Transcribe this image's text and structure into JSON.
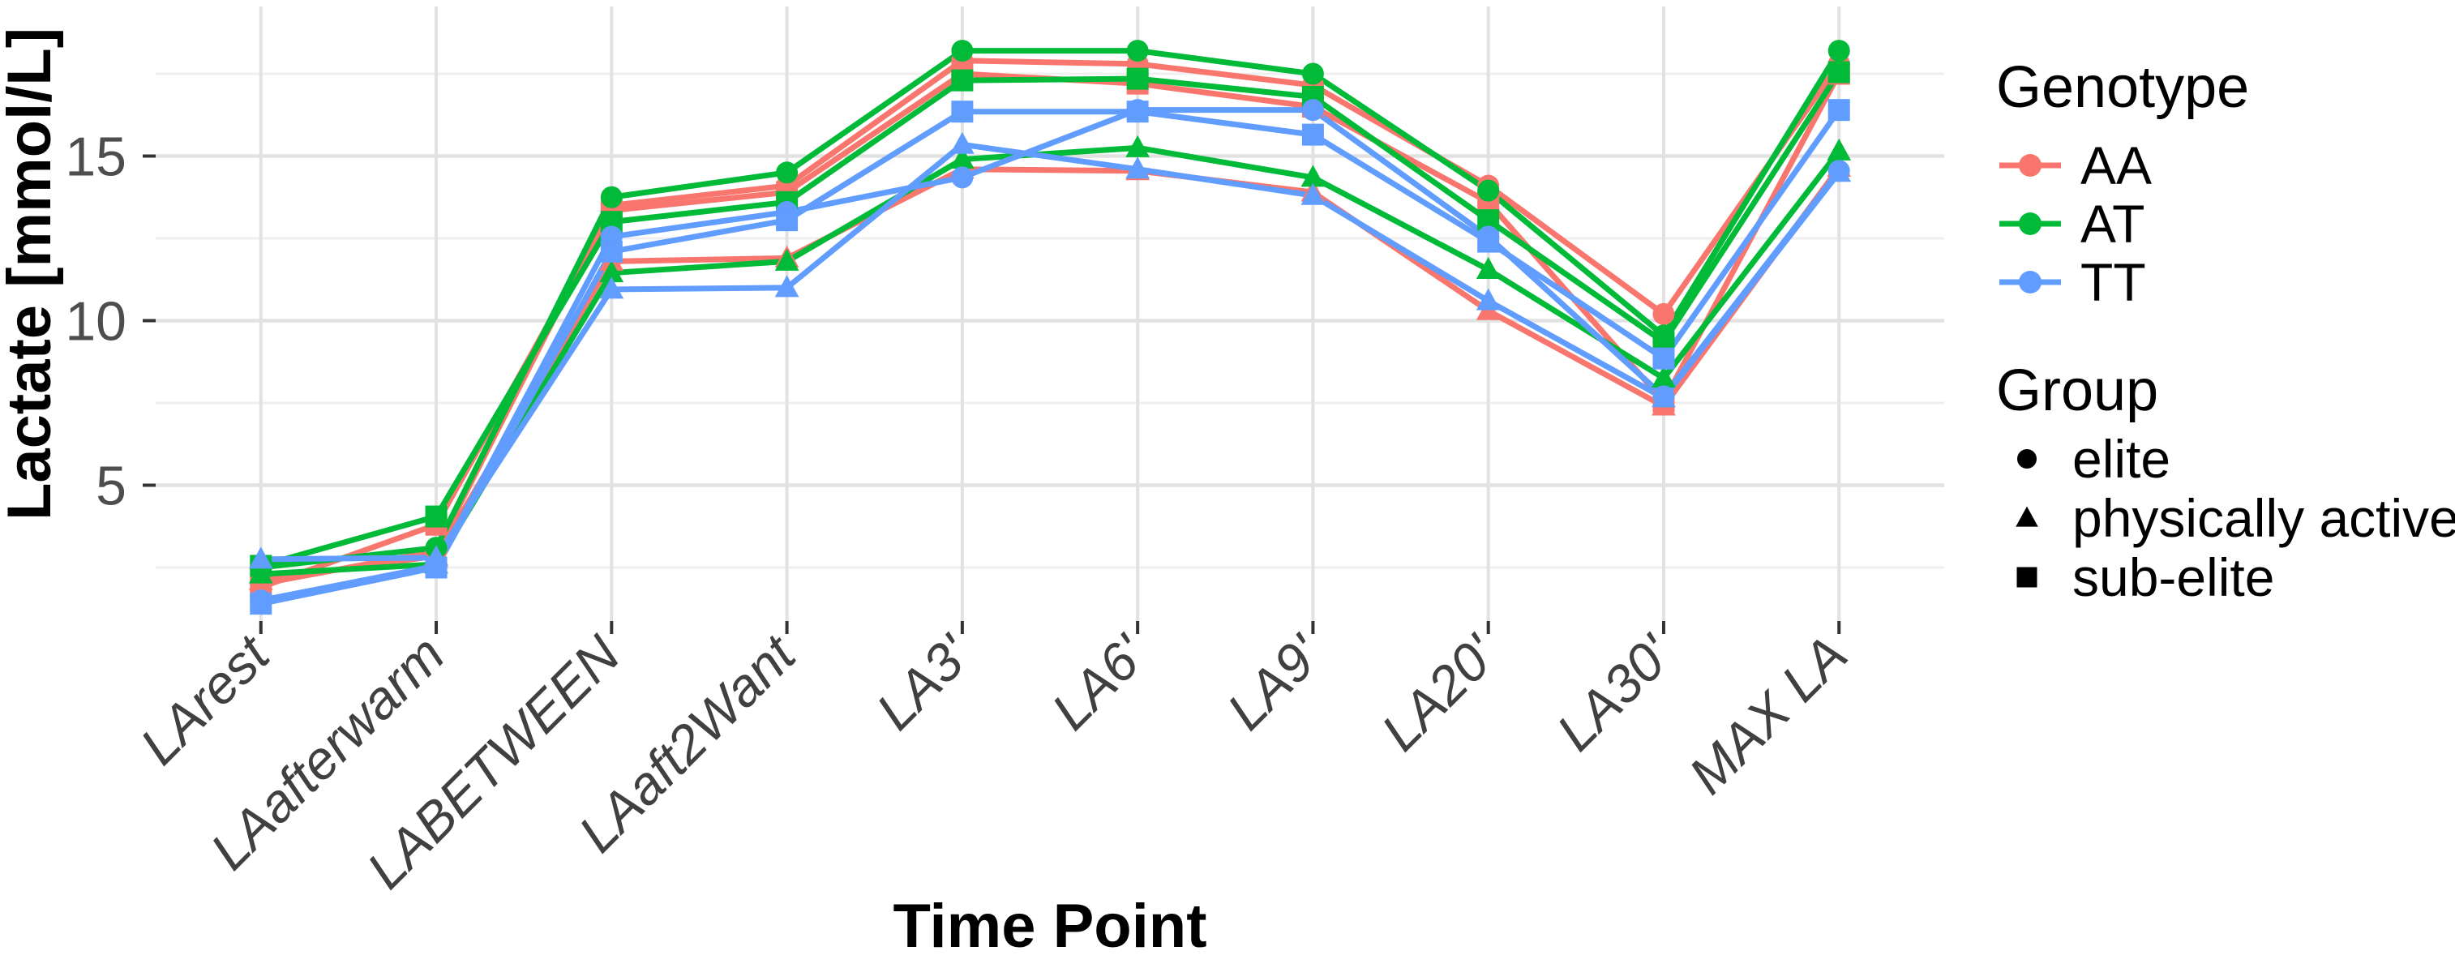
{
  "y_axis": {
    "title": "Lactate [mmol/L]",
    "major_ticks": [
      5,
      10,
      15
    ],
    "minor_ticks": [
      2.5,
      7.5,
      12.5,
      17.5
    ],
    "range": [
      0.87,
      19.54
    ]
  },
  "x_axis": {
    "title": "Time Point",
    "categories": [
      "LArest",
      "LAafterwarm",
      "LABETWEEN",
      "LAaft2Want",
      "LA3'",
      "LA6'",
      "LA9'",
      "LA20'",
      "LA30'",
      "MAX LA"
    ]
  },
  "legend": {
    "genotype": {
      "title": "Genotype",
      "items": [
        {
          "label": "AA",
          "color": "#F8766D"
        },
        {
          "label": "AT",
          "color": "#00BA38"
        },
        {
          "label": "TT",
          "color": "#619CFF"
        }
      ]
    },
    "group": {
      "title": "Group",
      "items": [
        {
          "label": "elite",
          "shape": "circle"
        },
        {
          "label": "physically active",
          "shape": "triangle"
        },
        {
          "label": "sub-elite",
          "shape": "square"
        }
      ]
    }
  },
  "colors": {
    "AA": "#F8766D",
    "AT": "#00BA38",
    "TT": "#619CFF",
    "grid_major": "#E2E2E2",
    "grid_minor": "#EFEFEF",
    "tick": "#333333"
  },
  "chart_data": {
    "type": "line",
    "title": "",
    "xlabel": "Time Point",
    "ylabel": "Lactate [mmol/L]",
    "ylim": [
      0.87,
      19.54
    ],
    "grid": true,
    "legend_position": "right",
    "categories": [
      "LArest",
      "LAafterwarm",
      "LABETWEEN",
      "LAaft2Want",
      "LA3'",
      "LA6'",
      "LA9'",
      "LA20'",
      "LA30'",
      "MAX LA"
    ],
    "series": [
      {
        "name": "AA elite",
        "genotype": "AA",
        "group": "elite",
        "color": "#F8766D",
        "shape": "circle",
        "values": [
          2.0,
          3.0,
          13.5,
          14.1,
          17.9,
          17.8,
          17.15,
          14.1,
          10.2,
          17.8
        ]
      },
      {
        "name": "AA physically active",
        "genotype": "AA",
        "group": "physically active",
        "color": "#F8766D",
        "shape": "triangle",
        "values": [
          2.1,
          2.85,
          11.8,
          11.9,
          14.6,
          14.55,
          13.9,
          10.3,
          7.4,
          14.65
        ]
      },
      {
        "name": "AA sub-elite",
        "genotype": "AA",
        "group": "sub-elite",
        "color": "#F8766D",
        "shape": "square",
        "values": [
          1.9,
          3.8,
          13.35,
          13.9,
          17.5,
          17.2,
          16.5,
          13.6,
          7.55,
          17.5
        ]
      },
      {
        "name": "AT elite",
        "genotype": "AT",
        "group": "elite",
        "color": "#00BA38",
        "shape": "circle",
        "values": [
          2.5,
          3.1,
          13.75,
          14.5,
          18.2,
          18.2,
          17.5,
          13.95,
          9.55,
          18.2
        ]
      },
      {
        "name": "AT physically active",
        "genotype": "AT",
        "group": "physically active",
        "color": "#00BA38",
        "shape": "triangle",
        "values": [
          2.3,
          2.6,
          11.45,
          11.8,
          14.9,
          15.25,
          14.35,
          11.55,
          8.25,
          15.15
        ]
      },
      {
        "name": "AT sub-elite",
        "genotype": "AT",
        "group": "sub-elite",
        "color": "#00BA38",
        "shape": "square",
        "values": [
          2.55,
          4.05,
          13.0,
          13.6,
          17.3,
          17.35,
          16.8,
          13.05,
          9.35,
          17.55
        ]
      },
      {
        "name": "TT elite",
        "genotype": "TT",
        "group": "elite",
        "color": "#619CFF",
        "shape": "circle",
        "values": [
          1.5,
          2.55,
          12.55,
          13.3,
          14.35,
          16.4,
          16.4,
          12.55,
          7.7,
          14.55
        ]
      },
      {
        "name": "TT physically active",
        "genotype": "TT",
        "group": "physically active",
        "color": "#619CFF",
        "shape": "triangle",
        "values": [
          2.75,
          2.8,
          10.95,
          11.0,
          15.35,
          14.6,
          13.8,
          10.6,
          7.65,
          14.5
        ]
      },
      {
        "name": "TT sub-elite",
        "genotype": "TT",
        "group": "sub-elite",
        "color": "#619CFF",
        "shape": "square",
        "values": [
          1.4,
          2.5,
          12.1,
          13.05,
          16.35,
          16.35,
          15.65,
          12.4,
          8.85,
          16.4
        ]
      }
    ]
  }
}
